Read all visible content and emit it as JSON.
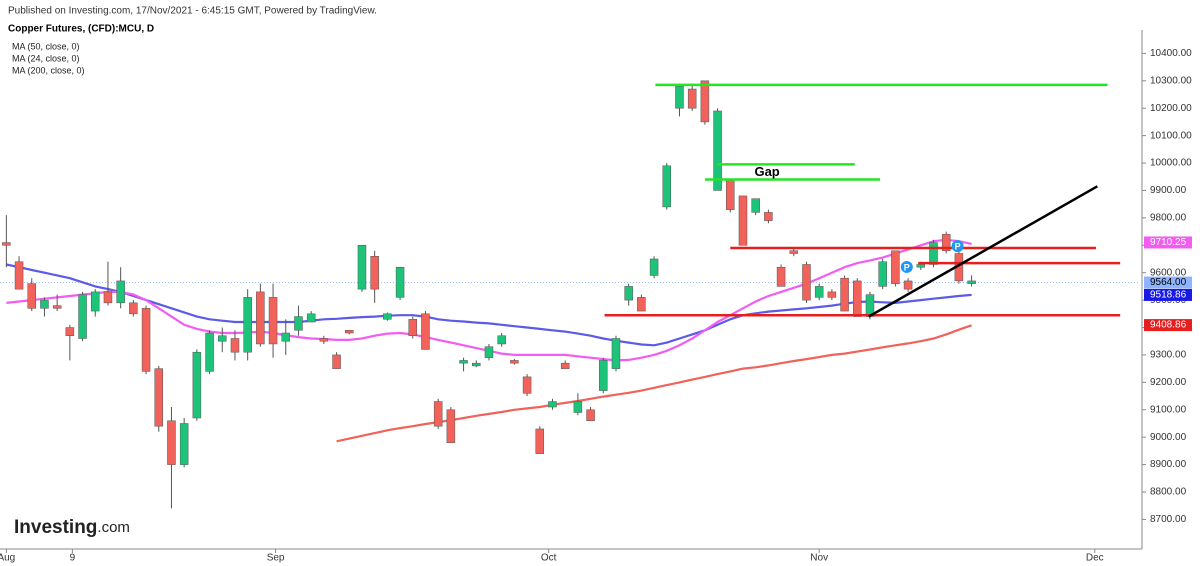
{
  "chart_data": {
    "type": "candlestick",
    "source": "Published on Investing.com, 17/Nov/2021 - 6:45:15 GMT, Powered by TradingView.",
    "title": "Copper Futures, (CFD):MCU, D",
    "logo": "Investing",
    "logo_suffix": ".com",
    "up_color": "#1ec37a",
    "down_color": "#f0625a",
    "open": [
      9710,
      9640,
      9560,
      9470,
      9480,
      9400,
      9360,
      9460,
      9530,
      9490,
      9490,
      9470,
      9250,
      9060,
      8900,
      9070,
      9240,
      9350,
      9360,
      9310,
      9530,
      9510,
      9350,
      9390,
      9420,
      9360,
      9300,
      9390,
      9540,
      9660,
      9430,
      9510,
      9430,
      9450,
      9130,
      9100,
      9270,
      9260,
      9290,
      9340,
      9280,
      9220,
      9030,
      9110,
      9270,
      9090,
      9100,
      9170,
      9250,
      9500,
      9510,
      9590,
      9840,
      10200,
      10270,
      10300,
      9900,
      9940,
      9880,
      9820,
      9820,
      9620,
      9680,
      9630,
      9510,
      9530,
      9580,
      9570,
      9440,
      9550,
      9680,
      9570,
      9620,
      9630,
      9740,
      9670,
      9560
    ],
    "high": [
      9810,
      9660,
      9580,
      9510,
      9520,
      9410,
      9530,
      9540,
      9640,
      9620,
      9500,
      9480,
      9260,
      9110,
      9070,
      9320,
      9390,
      9400,
      9390,
      9540,
      9560,
      9560,
      9430,
      9480,
      9460,
      9370,
      9310,
      9390,
      9700,
      9680,
      9455,
      9620,
      9440,
      9460,
      9140,
      9110,
      9290,
      9280,
      9340,
      9380,
      9285,
      9230,
      9040,
      9140,
      9280,
      9160,
      9110,
      9290,
      9370,
      9560,
      9520,
      9660,
      10000,
      10290,
      10290,
      10300,
      10200,
      9940,
      9880,
      9870,
      9830,
      9630,
      9690,
      9640,
      9560,
      9540,
      9590,
      9580,
      9530,
      9650,
      9680,
      9580,
      9640,
      9720,
      9750,
      9680,
      9590
    ],
    "low": [
      9620,
      9540,
      9460,
      9440,
      9460,
      9280,
      9350,
      9440,
      9480,
      9470,
      9440,
      9230,
      9020,
      8740,
      8890,
      9060,
      9230,
      9310,
      9280,
      9280,
      9330,
      9290,
      9300,
      9370,
      9420,
      9340,
      9250,
      9375,
      9530,
      9490,
      9425,
      9500,
      9360,
      9320,
      9030,
      8980,
      9240,
      9255,
      9280,
      9330,
      9265,
      9150,
      8940,
      9100,
      9250,
      9080,
      9060,
      9160,
      9240,
      9480,
      9460,
      9580,
      9830,
      10170,
      10190,
      10140,
      9900,
      9820,
      9700,
      9810,
      9780,
      9550,
      9660,
      9490,
      9500,
      9500,
      9460,
      9440,
      9430,
      9540,
      9550,
      9530,
      9610,
      9620,
      9670,
      9560,
      9550
    ],
    "close": [
      9700,
      9540,
      9470,
      9500,
      9470,
      9370,
      9520,
      9530,
      9490,
      9570,
      9450,
      9240,
      9040,
      8900,
      9050,
      9310,
      9380,
      9370,
      9310,
      9510,
      9340,
      9340,
      9380,
      9440,
      9450,
      9350,
      9250,
      9380,
      9700,
      9540,
      9450,
      9620,
      9370,
      9320,
      9040,
      8980,
      9280,
      9270,
      9330,
      9370,
      9270,
      9160,
      8940,
      9130,
      9250,
      9130,
      9060,
      9280,
      9360,
      9550,
      9460,
      9650,
      9990,
      10280,
      10200,
      10150,
      10190,
      9830,
      9700,
      9870,
      9790,
      9550,
      9670,
      9500,
      9550,
      9510,
      9460,
      9440,
      9520,
      9640,
      9560,
      9540,
      9630,
      9710,
      9680,
      9570,
      9570
    ],
    "series": [
      {
        "name": "MA (50, close, 0)",
        "color": "#5b5be8",
        "values": [
          9630,
          9620,
          9610,
          9600,
          9590,
          9580,
          9565,
          9550,
          9540,
          9530,
          9515,
          9500,
          9485,
          9470,
          9455,
          9440,
          9430,
          9425,
          9420,
          9420,
          9420,
          9420,
          9420,
          9420,
          9425,
          9430,
          9432,
          9435,
          9438,
          9440,
          9443,
          9445,
          9445,
          9440,
          9430,
          9425,
          9422,
          9418,
          9415,
          9410,
          9405,
          9400,
          9395,
          9390,
          9385,
          9378,
          9370,
          9360,
          9352,
          9345,
          9338,
          9335,
          9345,
          9360,
          9375,
          9390,
          9410,
          9430,
          9445,
          9452,
          9458,
          9462,
          9466,
          9470,
          9475,
          9480,
          9487,
          9493,
          9495,
          9492,
          9490,
          9495,
          9500,
          9505,
          9510,
          9515,
          9519
        ]
      },
      {
        "name": "MA (24, close, 0)",
        "color": "#f25cf2",
        "values": [
          9490,
          9495,
          9500,
          9505,
          9510,
          9515,
          9520,
          9525,
          9530,
          9530,
          9520,
          9500,
          9470,
          9440,
          9410,
          9395,
          9385,
          9380,
          9380,
          9382,
          9385,
          9380,
          9372,
          9365,
          9360,
          9358,
          9355,
          9355,
          9360,
          9370,
          9378,
          9380,
          9375,
          9365,
          9355,
          9345,
          9335,
          9325,
          9315,
          9305,
          9300,
          9300,
          9300,
          9300,
          9300,
          9295,
          9290,
          9285,
          9280,
          9282,
          9290,
          9300,
          9315,
          9335,
          9360,
          9390,
          9420,
          9445,
          9470,
          9495,
          9515,
          9530,
          9545,
          9560,
          9580,
          9600,
          9620,
          9635,
          9645,
          9655,
          9670,
          9685,
          9700,
          9715,
          9720,
          9715,
          9705
        ]
      },
      {
        "name": "MA (200, close, 0)",
        "color": "#f0625a",
        "values": [
          null,
          null,
          null,
          null,
          null,
          null,
          null,
          null,
          null,
          null,
          null,
          null,
          null,
          null,
          null,
          null,
          null,
          null,
          null,
          null,
          null,
          null,
          null,
          null,
          null,
          null,
          8985,
          8995,
          9005,
          9015,
          9025,
          9033,
          9040,
          9048,
          9055,
          9062,
          9070,
          9078,
          9085,
          9092,
          9100,
          9105,
          9110,
          9118,
          9125,
          9132,
          9140,
          9148,
          9155,
          9162,
          9170,
          9180,
          9190,
          9200,
          9210,
          9220,
          9230,
          9240,
          9250,
          9255,
          9262,
          9270,
          9278,
          9285,
          9292,
          9300,
          9305,
          9312,
          9320,
          9328,
          9335,
          9342,
          9350,
          9360,
          9375,
          9392,
          9408
        ]
      }
    ],
    "levels": [
      {
        "color": "#22e622",
        "x": [
          51.1,
          86.7
        ],
        "y": [
          10285,
          10285
        ]
      },
      {
        "color": "#22e622",
        "x": [
          56,
          66.8
        ],
        "y": [
          9995,
          9995
        ]
      },
      {
        "color": "#22e622",
        "x": [
          55,
          68.8
        ],
        "y": [
          9940,
          9940
        ]
      },
      {
        "color": "#e61e1e",
        "x": [
          57,
          85.8
        ],
        "y": [
          9690,
          9690
        ]
      },
      {
        "color": "#e61e1e",
        "x": [
          71.8,
          87.7
        ],
        "y": [
          9635,
          9635
        ]
      },
      {
        "color": "#e61e1e",
        "x": [
          47.1,
          87.7
        ],
        "y": [
          9445,
          9445
        ]
      },
      {
        "color": "#000000",
        "x": [
          67.9,
          85.9
        ],
        "y": [
          9440,
          9915
        ]
      }
    ],
    "annotations": [
      {
        "text": "Gap",
        "x": 59.9,
        "y": 9966
      }
    ],
    "markers": [
      {
        "label": "P",
        "x": 70.9,
        "y": 9621
      },
      {
        "label": "P",
        "x": 74.9,
        "y": 9697
      }
    ],
    "price_labels": [
      {
        "value": 9710.25,
        "label": "9710.25",
        "color": "#f25cf2"
      },
      {
        "value": 9564.0,
        "label": "9564.00",
        "color": "#8fb4ff"
      },
      {
        "value": 9518.86,
        "label": "9518.86",
        "color": "#1a1ae6"
      },
      {
        "value": 9408.86,
        "label": "9408.86",
        "color": "#e61e1e"
      }
    ],
    "xlim": [
      -0.5,
      89.26
    ],
    "xticks": [
      {
        "value": 0,
        "label": "Aug"
      },
      {
        "value": 5.2,
        "label": "9"
      },
      {
        "value": 21.2,
        "label": "Sep"
      },
      {
        "value": 42.7,
        "label": "Oct"
      },
      {
        "value": 64,
        "label": "Nov"
      },
      {
        "value": 85.7,
        "label": "Dec"
      }
    ],
    "ylim": [
      8606.7,
      10485.3
    ],
    "yticks": [
      {
        "value": 8700,
        "label": "8700.00"
      },
      {
        "value": 8800,
        "label": "8800.00"
      },
      {
        "value": 8900,
        "label": "8900.00"
      },
      {
        "value": 9000,
        "label": "9000.00"
      },
      {
        "value": 9100,
        "label": "9100.00"
      },
      {
        "value": 9200,
        "label": "9200.00"
      },
      {
        "value": 9300,
        "label": "9300.00"
      },
      {
        "value": 9400,
        "label": "9400.00"
      },
      {
        "value": 9500,
        "label": "9500.00"
      },
      {
        "value": 9600,
        "label": "9600.00"
      },
      {
        "value": 9700,
        "label": "9700.00"
      },
      {
        "value": 9800,
        "label": "9800.00"
      },
      {
        "value": 9900,
        "label": "9900.00"
      },
      {
        "value": 10000,
        "label": "10000.00"
      },
      {
        "value": 10100,
        "label": "10100.00"
      },
      {
        "value": 10200,
        "label": "10200.00"
      },
      {
        "value": 10300,
        "label": "10300.00"
      },
      {
        "value": 10400,
        "label": "10400.00"
      }
    ]
  }
}
